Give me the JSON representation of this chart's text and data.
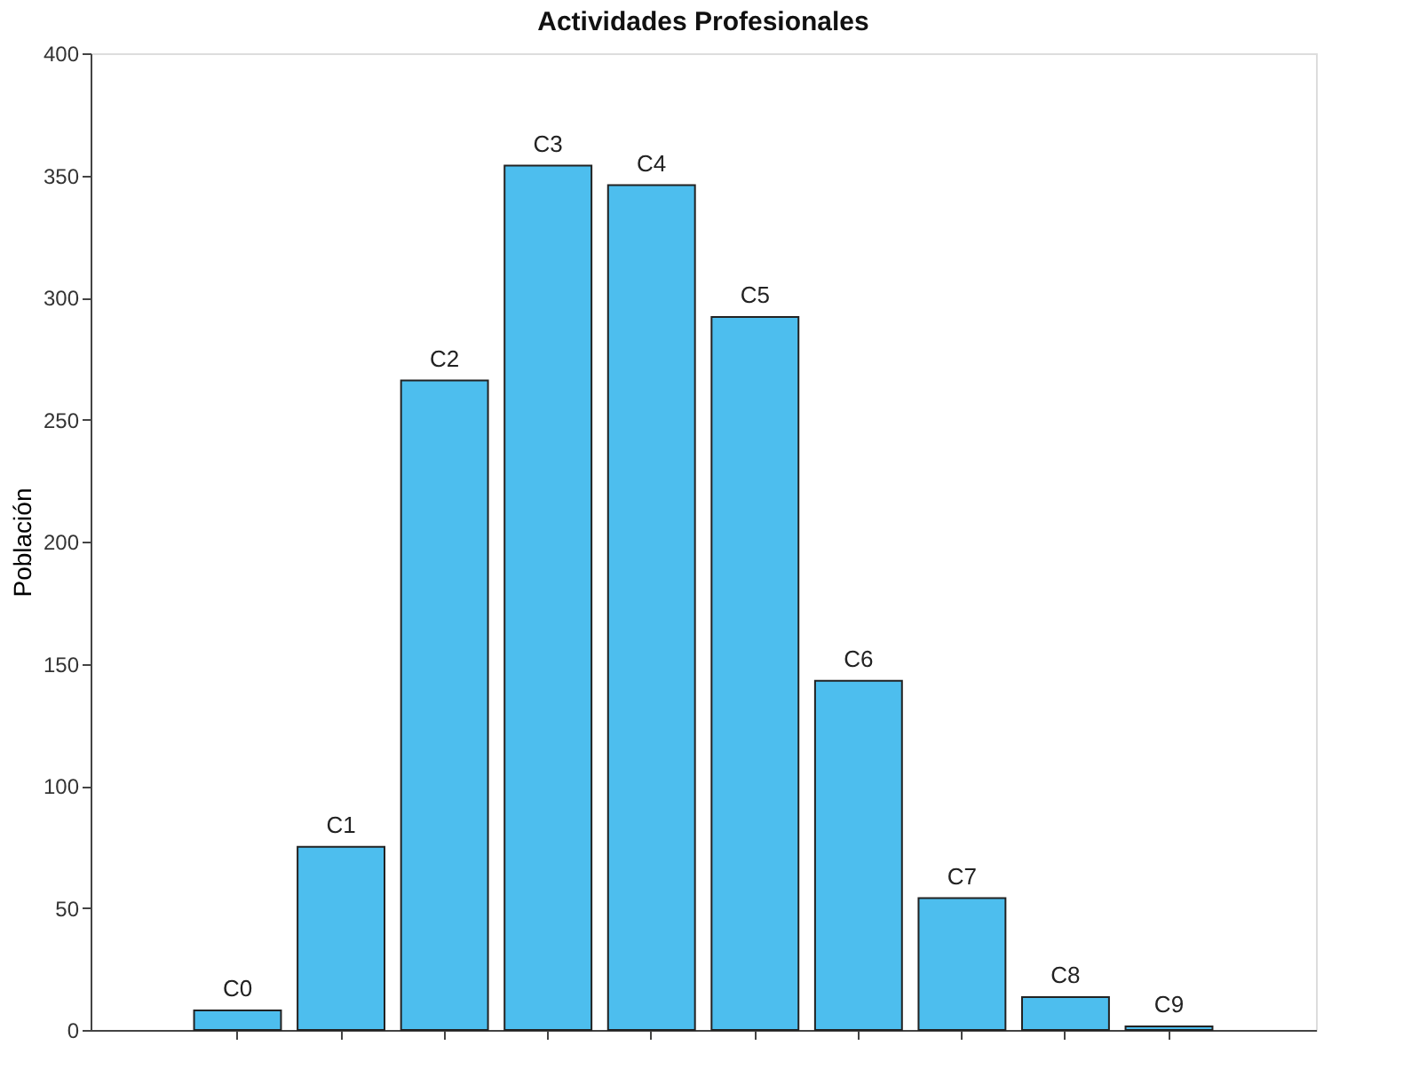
{
  "chart_data": {
    "type": "bar",
    "title": "Actividades Profesionales",
    "ylabel": "Población",
    "categories": [
      "C0",
      "C1",
      "C2",
      "C3",
      "C4",
      "C5",
      "C6",
      "C7",
      "C8",
      "C9"
    ],
    "values": [
      8,
      75,
      266,
      354,
      346,
      292,
      143,
      54,
      13.5,
      1.5
    ],
    "color": "#4dbeee",
    "ylim": [
      0,
      400
    ],
    "yticks": [
      0,
      50,
      100,
      150,
      200,
      250,
      300,
      350,
      400
    ],
    "grid": false,
    "tick_labels": "y"
  }
}
